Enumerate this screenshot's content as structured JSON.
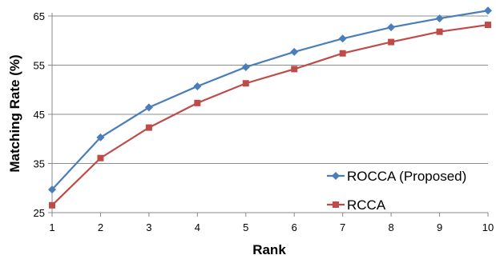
{
  "chart_data": {
    "type": "line",
    "x": [
      1,
      2,
      3,
      4,
      5,
      6,
      7,
      8,
      9,
      10
    ],
    "series": [
      {
        "name": "ROCCA (Proposed)",
        "values": [
          29.7,
          40.3,
          46.4,
          50.7,
          54.6,
          57.7,
          60.4,
          62.7,
          64.5,
          66.1
        ],
        "color": "#4a7ebb",
        "marker": "diamond"
      },
      {
        "name": "RCCA",
        "values": [
          26.5,
          36.1,
          42.3,
          47.3,
          51.3,
          54.2,
          57.4,
          59.7,
          61.8,
          63.2
        ],
        "color": "#be4b48",
        "marker": "square"
      }
    ],
    "xlabel": "Rank",
    "ylabel": "Matching Rate (%)",
    "xlim": [
      1,
      10
    ],
    "ylim": [
      25,
      65
    ],
    "yticks": [
      25,
      35,
      45,
      55,
      65
    ],
    "xticks": [
      1,
      2,
      3,
      4,
      5,
      6,
      7,
      8,
      9,
      10
    ],
    "grid": "horizontal",
    "legend_position": "bottom-right"
  }
}
